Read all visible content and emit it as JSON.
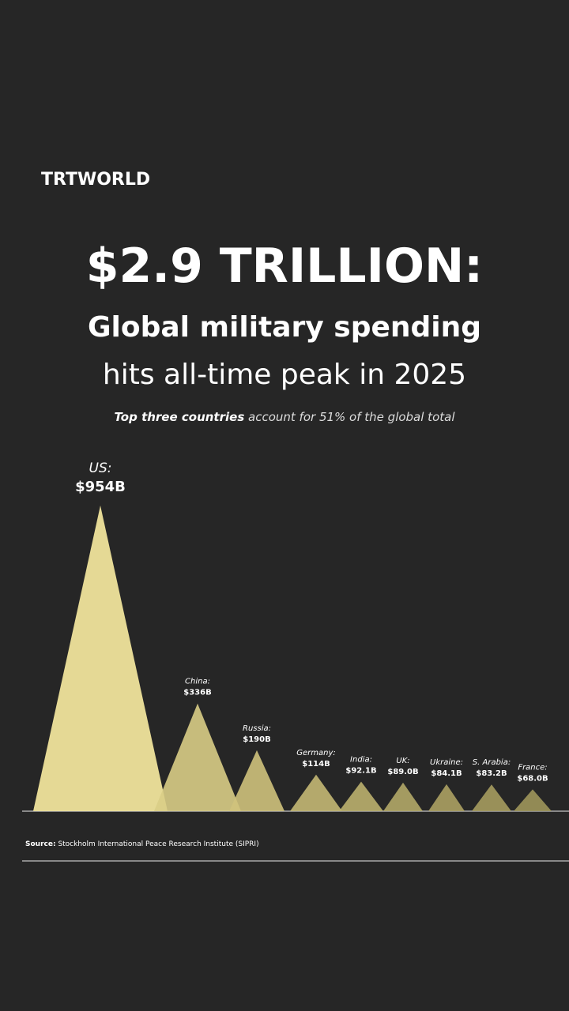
{
  "brand": "TRTWORLD",
  "chart_data": {
    "type": "triangle",
    "title": "$2.9 TRILLION:",
    "subtitle_bold": "Global military spending",
    "subtitle": "hits all-time peak in 2025",
    "note_bold": "Top three countries",
    "note": "account for 51% of the global total",
    "categories": [
      "US:",
      "China:",
      "Russia:",
      "Germany:",
      "India:",
      "UK:",
      "Ukraine:",
      "S. Arabia:",
      "France:"
    ],
    "values": [
      954,
      336,
      190,
      114,
      92.1,
      89.0,
      84.1,
      83.2,
      68.0
    ],
    "value_labels": [
      "$954B",
      "$336B",
      "$190B",
      "$114B",
      "$92.1B",
      "$89.0B",
      "$84.1B",
      "$83.2B",
      "$68.0B"
    ],
    "colors": [
      "#efe39b",
      "#d9cd86",
      "#cfc27c",
      "#c4b874",
      "#bbb06e",
      "#b3a868",
      "#aca163",
      "#a69c5f",
      "#9f965b"
    ]
  },
  "source_label": "Source:",
  "source": "Stockholm International Peace Research Institute (SIPRI)"
}
